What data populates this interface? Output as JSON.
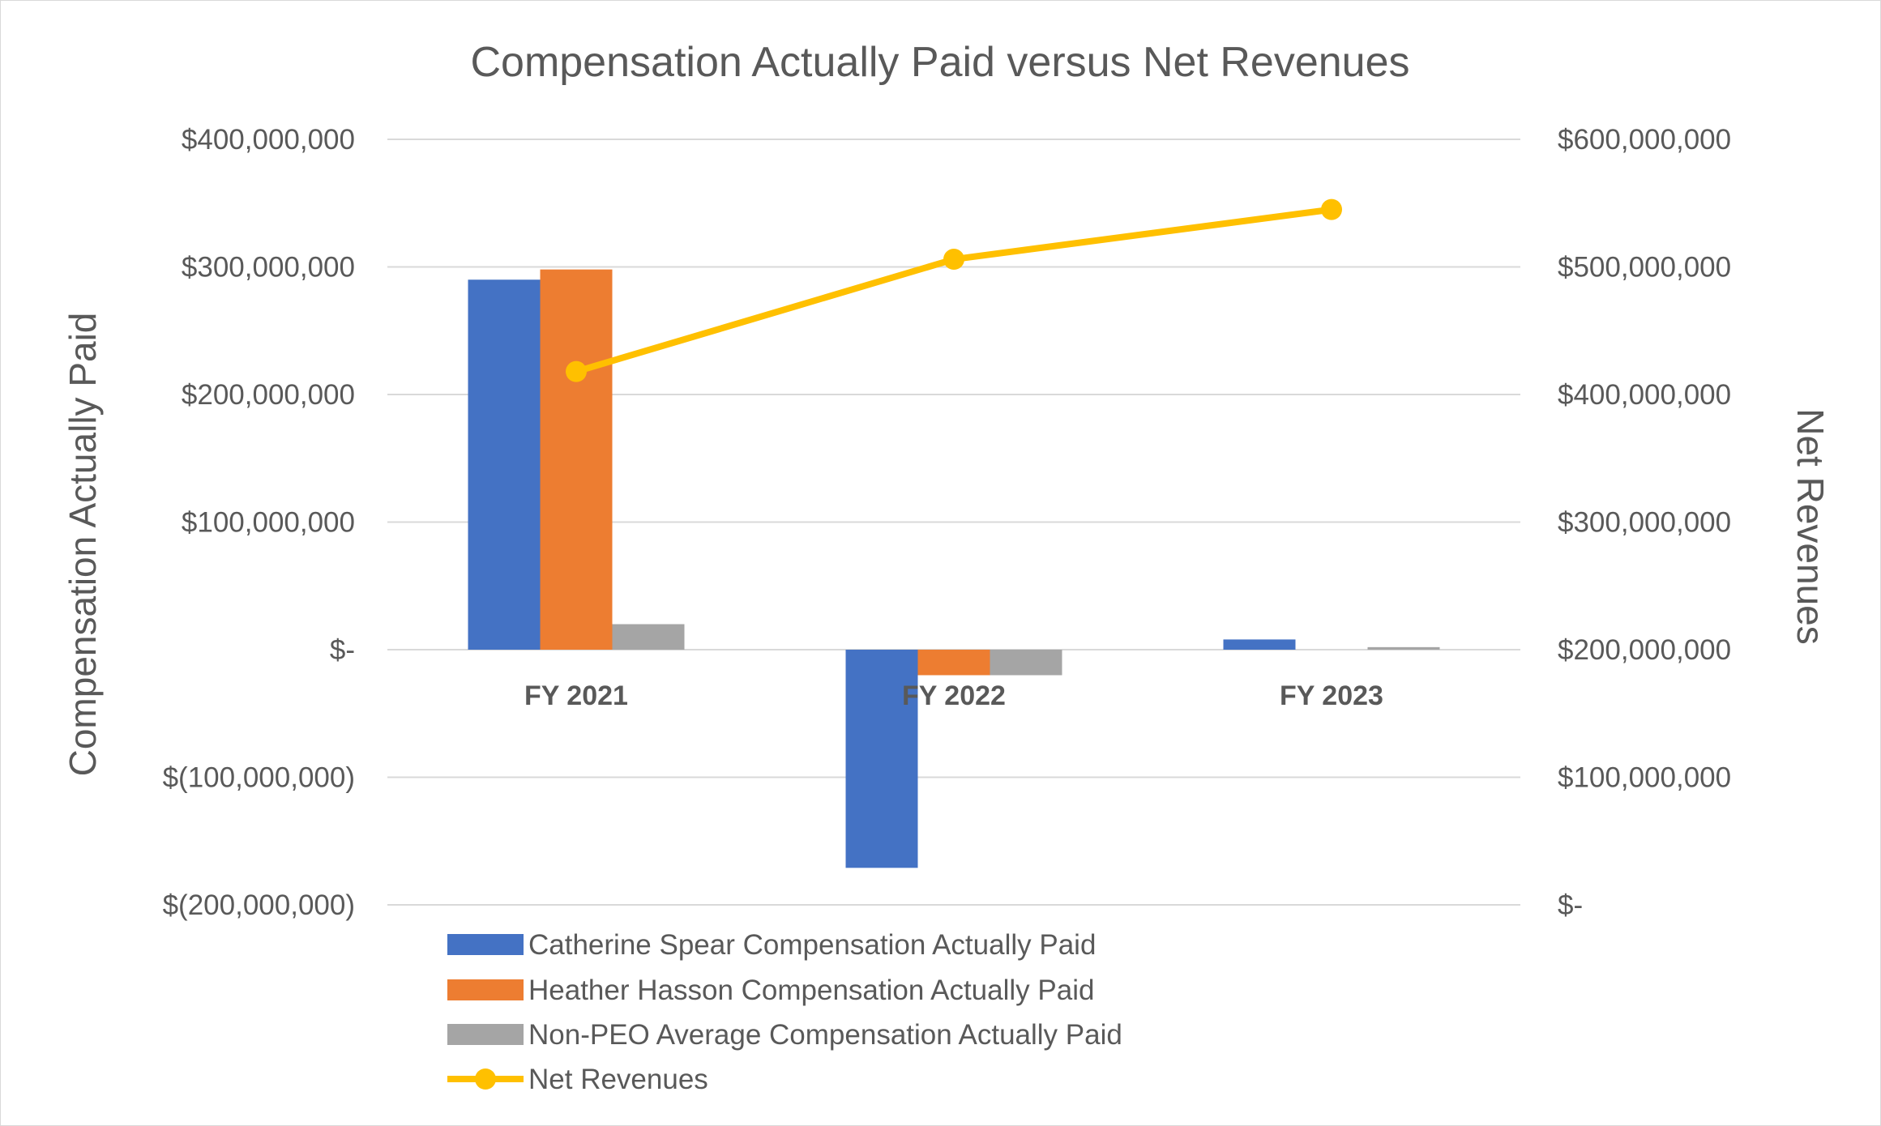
{
  "chart_data": {
    "type": "bar",
    "title": "Compensation Actually Paid versus Net Revenues",
    "ylabel": "Compensation Actually Paid",
    "y2label": "Net Revenues",
    "categories": [
      "FY 2021",
      "FY 2022",
      "FY 2023"
    ],
    "ylim": [
      -200000000,
      400000000
    ],
    "y2lim": [
      0,
      600000000
    ],
    "y_ticks": [
      "$400,000,000",
      "$300,000,000",
      "$200,000,000",
      "$100,000,000",
      "$-",
      "$(100,000,000)",
      "$(200,000,000)"
    ],
    "y_tick_values": [
      400000000,
      300000000,
      200000000,
      100000000,
      0,
      -100000000,
      -200000000
    ],
    "y2_ticks": [
      "$600,000,000",
      "$500,000,000",
      "$400,000,000",
      "$300,000,000",
      "$200,000,000",
      "$100,000,000",
      "$-"
    ],
    "y2_tick_values": [
      600000000,
      500000000,
      400000000,
      300000000,
      200000000,
      100000000,
      0
    ],
    "grid": true,
    "legend_position": "bottom-left",
    "series": [
      {
        "name": "Catherine Spear Compensation Actually Paid",
        "type": "bar",
        "axis": "left",
        "color": "#4472C4",
        "values": [
          290000000,
          -171000000,
          8000000
        ]
      },
      {
        "name": "Heather Hasson Compensation Actually Paid",
        "type": "bar",
        "axis": "left",
        "color": "#ED7D31",
        "values": [
          298000000,
          -20000000,
          0
        ]
      },
      {
        "name": "Non-PEO Average Compensation Actually Paid",
        "type": "bar",
        "axis": "left",
        "color": "#A5A5A5",
        "values": [
          20000000,
          -20000000,
          2000000
        ]
      },
      {
        "name": "Net Revenues",
        "type": "line",
        "axis": "right",
        "color": "#FFC000",
        "values": [
          418000000,
          506000000,
          545000000
        ]
      }
    ]
  }
}
